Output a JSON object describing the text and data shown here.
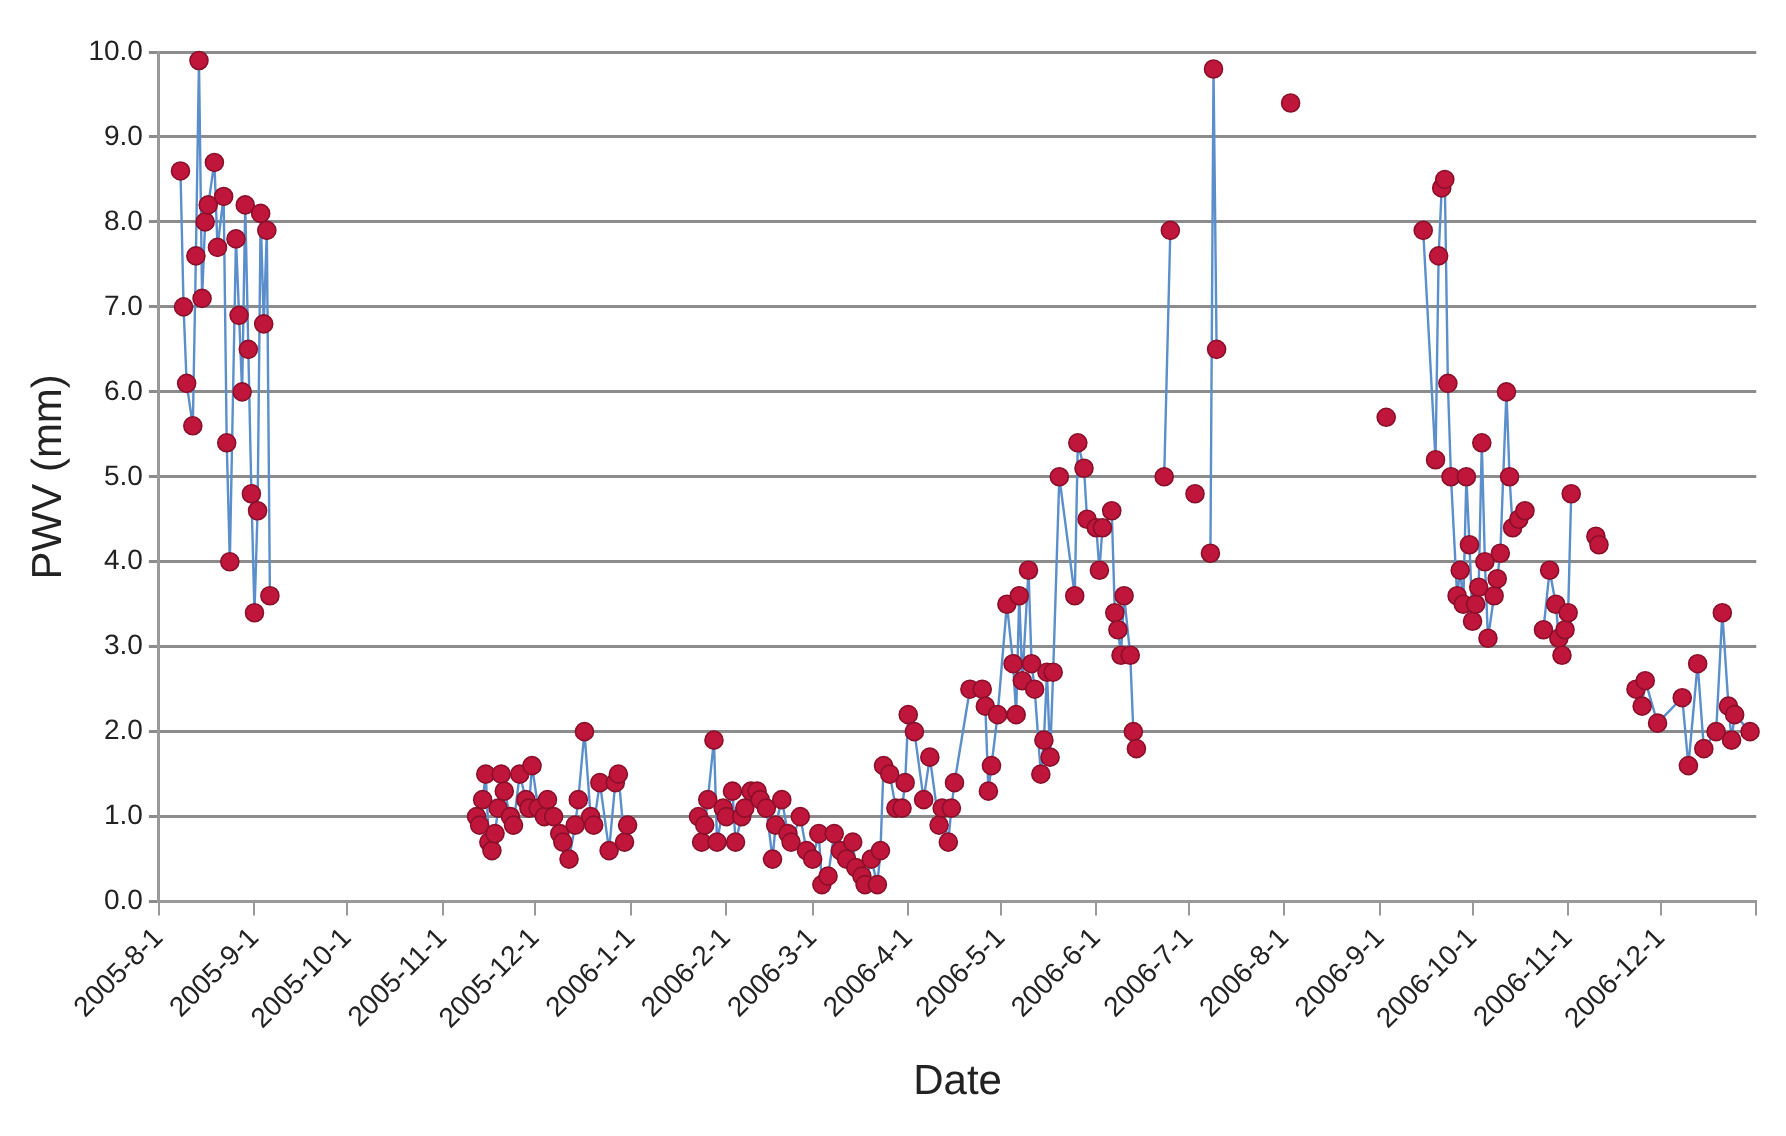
{
  "chart_data": {
    "type": "line",
    "xlabel": "Date",
    "ylabel": "PWV (mm)",
    "color": "#c0163c",
    "marker": "circle",
    "line_style": "solid",
    "grid": "y",
    "legend": false,
    "x": [
      "2005-08-08",
      "2005-08-09",
      "2005-08-10",
      "2005-08-12",
      "2005-08-13",
      "2005-08-14",
      "2005-08-15",
      "2005-08-16",
      "2005-08-17",
      "2005-08-19",
      "2005-08-20",
      "2005-08-22",
      "2005-08-23",
      "2005-08-24",
      "2005-08-26",
      "2005-08-27",
      "2005-08-28",
      "2005-08-29",
      "2005-08-30",
      "2005-08-31",
      "2005-09-01",
      "2005-09-02",
      "2005-09-03",
      "2005-09-04",
      "2005-09-05",
      "2005-09-06",
      "2005-10-10",
      "2005-11-12",
      "2005-11-13",
      "2005-11-14",
      "2005-11-15",
      "2005-11-16",
      "2005-11-17",
      "2005-11-18",
      "2005-11-19",
      "2005-11-20",
      "2005-11-21",
      "2005-11-23",
      "2005-11-24",
      "2005-11-26",
      "2005-11-28",
      "2005-11-29",
      "2005-11-30",
      "2005-12-02",
      "2005-12-04",
      "2005-12-05",
      "2005-12-07",
      "2005-12-09",
      "2005-12-10",
      "2005-12-12",
      "2005-12-14",
      "2005-12-15",
      "2005-12-17",
      "2005-12-19",
      "2005-12-20",
      "2005-12-22",
      "2005-12-25",
      "2005-12-27",
      "2005-12-28",
      "2005-12-30",
      "2005-12-31",
      "2006-01-12",
      "2006-01-23",
      "2006-01-24",
      "2006-01-25",
      "2006-01-26",
      "2006-01-28",
      "2006-01-29",
      "2006-01-31",
      "2006-02-01",
      "2006-02-03",
      "2006-02-04",
      "2006-02-06",
      "2006-02-07",
      "2006-02-09",
      "2006-02-11",
      "2006-02-12",
      "2006-02-14",
      "2006-02-16",
      "2006-02-17",
      "2006-02-19",
      "2006-02-21",
      "2006-02-22",
      "2006-02-25",
      "2006-02-27",
      "2006-03-01",
      "2006-03-03",
      "2006-03-04",
      "2006-03-06",
      "2006-03-08",
      "2006-03-10",
      "2006-03-12",
      "2006-03-14",
      "2006-03-15",
      "2006-03-17",
      "2006-03-18",
      "2006-03-20",
      "2006-03-22",
      "2006-03-23",
      "2006-03-24",
      "2006-03-26",
      "2006-03-28",
      "2006-03-30",
      "2006-03-31",
      "2006-04-01",
      "2006-04-03",
      "2006-04-06",
      "2006-04-08",
      "2006-04-11",
      "2006-04-12",
      "2006-04-14",
      "2006-04-15",
      "2006-04-16",
      "2006-04-21",
      "2006-04-25",
      "2006-04-26",
      "2006-04-27",
      "2006-04-28",
      "2006-04-30",
      "2006-05-03",
      "2006-05-05",
      "2006-05-06",
      "2006-05-07",
      "2006-05-08",
      "2006-05-10",
      "2006-05-11",
      "2006-05-12",
      "2006-05-14",
      "2006-05-15",
      "2006-05-16",
      "2006-05-17",
      "2006-05-18",
      "2006-05-20",
      "2006-05-25",
      "2006-05-26",
      "2006-05-28",
      "2006-05-29",
      "2006-06-01",
      "2006-06-02",
      "2006-06-03",
      "2006-06-06",
      "2006-06-07",
      "2006-06-08",
      "2006-06-09",
      "2006-06-10",
      "2006-06-12",
      "2006-06-13",
      "2006-06-14",
      "2006-06-18",
      "2006-06-23",
      "2006-06-25",
      "2006-06-29",
      "2006-07-03",
      "2006-07-05",
      "2006-07-08",
      "2006-07-09",
      "2006-07-10",
      "2006-07-20",
      "2006-08-03",
      "2006-08-20",
      "2006-09-03",
      "2006-09-10",
      "2006-09-15",
      "2006-09-19",
      "2006-09-20",
      "2006-09-21",
      "2006-09-22",
      "2006-09-23",
      "2006-09-24",
      "2006-09-26",
      "2006-09-27",
      "2006-09-28",
      "2006-09-29",
      "2006-09-30",
      "2006-10-01",
      "2006-10-02",
      "2006-10-03",
      "2006-10-04",
      "2006-10-05",
      "2006-10-06",
      "2006-10-08",
      "2006-10-09",
      "2006-10-10",
      "2006-10-12",
      "2006-10-13",
      "2006-10-14",
      "2006-10-16",
      "2006-10-18",
      "2006-10-21",
      "2006-10-24",
      "2006-10-26",
      "2006-10-28",
      "2006-10-29",
      "2006-10-30",
      "2006-10-31",
      "2006-11-01",
      "2006-11-02",
      "2006-11-06",
      "2006-11-10",
      "2006-11-11",
      "2006-11-17",
      "2006-11-23",
      "2006-11-25",
      "2006-11-26",
      "2006-11-30",
      "2006-12-08",
      "2006-12-10",
      "2006-12-13",
      "2006-12-15",
      "2006-12-19",
      "2006-12-21",
      "2006-12-23",
      "2006-12-24",
      "2006-12-25",
      "2006-12-30"
    ],
    "values": [
      8.6,
      7.0,
      6.1,
      5.6,
      7.6,
      9.9,
      7.1,
      8.0,
      8.2,
      8.7,
      7.7,
      8.3,
      5.4,
      4.0,
      7.8,
      6.9,
      6.0,
      8.2,
      6.5,
      4.8,
      3.4,
      4.6,
      8.1,
      6.8,
      7.9,
      3.6,
      null,
      1.0,
      0.9,
      1.2,
      1.5,
      0.7,
      0.6,
      0.8,
      1.1,
      1.5,
      1.3,
      1.0,
      0.9,
      1.5,
      1.2,
      1.1,
      1.6,
      1.1,
      1.0,
      1.2,
      1.0,
      0.8,
      0.7,
      0.5,
      0.9,
      1.2,
      2.0,
      1.0,
      0.9,
      1.4,
      0.6,
      1.4,
      1.5,
      0.7,
      0.9,
      null,
      1.0,
      0.7,
      0.9,
      1.2,
      1.9,
      0.7,
      1.1,
      1.0,
      1.3,
      0.7,
      1.0,
      1.1,
      1.3,
      1.3,
      1.2,
      1.1,
      0.5,
      0.9,
      1.2,
      0.8,
      0.7,
      1.0,
      0.6,
      0.5,
      0.8,
      0.2,
      0.3,
      0.8,
      0.6,
      0.5,
      0.7,
      0.4,
      0.3,
      0.2,
      0.5,
      0.2,
      0.6,
      1.6,
      1.5,
      1.1,
      1.1,
      1.4,
      2.2,
      2.0,
      1.2,
      1.7,
      0.9,
      1.1,
      0.7,
      1.1,
      1.4,
      2.5,
      2.5,
      2.3,
      1.3,
      1.6,
      2.2,
      3.5,
      2.8,
      2.2,
      3.6,
      2.6,
      3.9,
      2.8,
      2.5,
      1.5,
      1.9,
      2.7,
      1.7,
      2.7,
      5.0,
      3.6,
      5.4,
      5.1,
      4.5,
      4.4,
      3.9,
      4.4,
      4.6,
      3.4,
      3.2,
      2.9,
      3.6,
      2.9,
      2.0,
      1.8,
      null,
      5.0,
      7.9,
      null,
      4.8,
      null,
      4.1,
      9.8,
      6.5,
      null,
      9.4,
      null,
      5.7,
      null,
      7.9,
      5.2,
      7.6,
      8.4,
      8.5,
      6.1,
      5.0,
      3.6,
      3.9,
      3.5,
      5.0,
      4.2,
      3.3,
      3.5,
      3.7,
      5.4,
      4.0,
      3.1,
      3.6,
      3.8,
      4.1,
      6.0,
      5.0,
      4.4,
      4.5,
      4.6,
      null,
      3.2,
      3.9,
      3.5,
      3.1,
      2.9,
      3.2,
      3.4,
      4.8,
      null,
      4.3,
      4.2,
      null,
      2.5,
      2.3,
      2.6,
      2.1,
      2.4,
      1.6,
      2.8,
      1.8,
      2.0,
      3.4,
      2.3,
      1.9,
      2.2,
      2.0
    ],
    "xlim": [
      "2005-08-01",
      "2007-01-01"
    ],
    "xticks": [
      {
        "value": "2005-08-01",
        "label": "2005-8-1"
      },
      {
        "value": "2005-09-01",
        "label": "2005-9-1"
      },
      {
        "value": "2005-10-01",
        "label": "2005-10-1"
      },
      {
        "value": "2005-11-01",
        "label": "2005-11-1"
      },
      {
        "value": "2005-12-01",
        "label": "2005-12-1"
      },
      {
        "value": "2006-01-01",
        "label": "2006-1-1"
      },
      {
        "value": "2006-02-01",
        "label": "2006-2-1"
      },
      {
        "value": "2006-03-01",
        "label": "2006-3-1"
      },
      {
        "value": "2006-04-01",
        "label": "2006-4-1"
      },
      {
        "value": "2006-05-01",
        "label": "2006-5-1"
      },
      {
        "value": "2006-06-01",
        "label": "2006-6-1"
      },
      {
        "value": "2006-07-01",
        "label": "2006-7-1"
      },
      {
        "value": "2006-08-01",
        "label": "2006-8-1"
      },
      {
        "value": "2006-09-01",
        "label": "2006-9-1"
      },
      {
        "value": "2006-10-01",
        "label": "2006-10-1"
      },
      {
        "value": "2006-11-01",
        "label": "2006-11-1"
      },
      {
        "value": "2006-12-01",
        "label": "2006-12-1"
      },
      {
        "value": "2007-01-01",
        "label": null
      }
    ],
    "ylim": [
      0,
      10
    ],
    "yticks": [
      {
        "value": 0,
        "label": "0.0"
      },
      {
        "value": 1,
        "label": "1.0"
      },
      {
        "value": 2,
        "label": "2.0"
      },
      {
        "value": 3,
        "label": "3.0"
      },
      {
        "value": 4,
        "label": "4.0"
      },
      {
        "value": 5,
        "label": "5.0"
      },
      {
        "value": 6,
        "label": "6.0"
      },
      {
        "value": 7,
        "label": "7.0"
      },
      {
        "value": 8,
        "label": "8.0"
      },
      {
        "value": 9,
        "label": "9.0"
      },
      {
        "value": 10,
        "label": "10.0"
      }
    ]
  }
}
